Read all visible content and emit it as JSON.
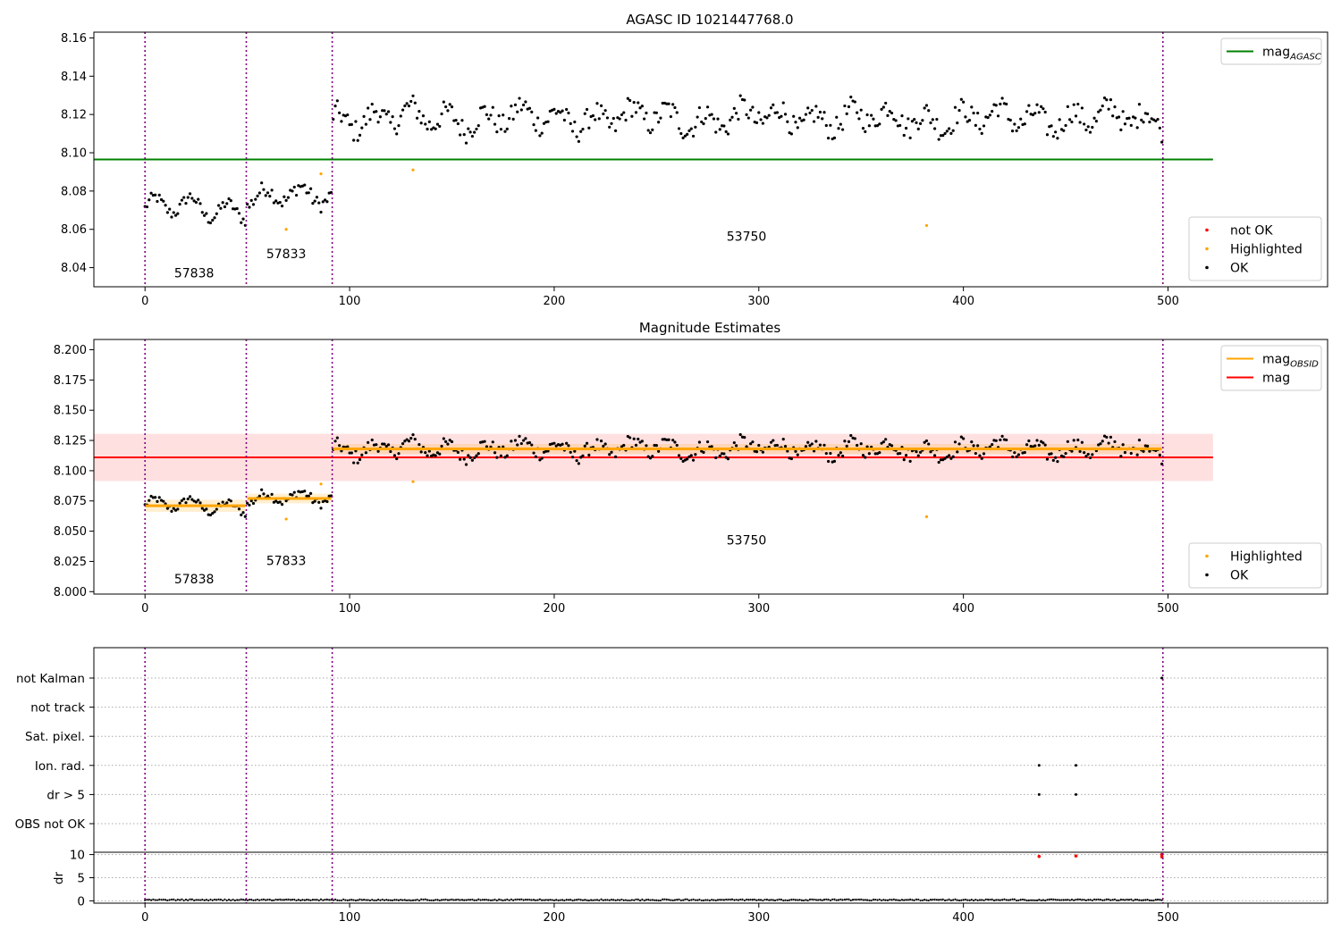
{
  "chart_data": [
    {
      "type": "scatter",
      "title": "AGASC ID 1021447768.0",
      "xlim": [
        -25,
        578
      ],
      "ylim": [
        8.03,
        8.163
      ],
      "xticks": [
        0,
        100,
        200,
        300,
        400,
        500
      ],
      "xtick_labels": [
        "0",
        "100",
        "200",
        "300",
        "400",
        "500"
      ],
      "yticks": [
        8.04,
        8.06,
        8.08,
        8.1,
        8.12,
        8.14,
        8.16
      ],
      "ytick_labels": [
        "8.04",
        "8.06",
        "8.08",
        "8.10",
        "8.12",
        "8.14",
        "8.16"
      ],
      "obs_boundaries": [
        0,
        49.5,
        91.5,
        497.5
      ],
      "obs_labels": [
        {
          "x": 24,
          "y": 8.035,
          "text": "57838"
        },
        {
          "x": 69,
          "y": 8.045,
          "text": "57833"
        },
        {
          "x": 294,
          "y": 8.054,
          "text": "53750"
        }
      ],
      "segments": [
        {
          "x0": 0,
          "x1": 49,
          "center": 8.071,
          "amp": 0.007,
          "noise": 0.003
        },
        {
          "x0": 50,
          "x1": 91,
          "center": 8.077,
          "amp": 0.006,
          "noise": 0.004
        },
        {
          "x0": 92,
          "x1": 497,
          "center": 8.118,
          "amp": 0.007,
          "noise": 0.006
        }
      ],
      "highlighted": [
        {
          "x": 69,
          "y": 8.06
        },
        {
          "x": 86,
          "y": 8.089
        },
        {
          "x": 131,
          "y": 8.091
        },
        {
          "x": 382,
          "y": 8.062
        }
      ],
      "hlines": [
        {
          "name": "mag_AGASC",
          "y": 8.0965,
          "color": "#008000",
          "x0": -25,
          "x1": 522
        }
      ],
      "legends": [
        {
          "position": "top-right",
          "items": [
            {
              "kind": "line",
              "color": "#008000",
              "label": "mag",
              "sub": "AGASC"
            }
          ]
        },
        {
          "position": "bottom-right",
          "items": [
            {
              "kind": "dot",
              "color": "#ff0000",
              "label": "not OK"
            },
            {
              "kind": "dot",
              "color": "#ffa500",
              "label": "Highlighted"
            },
            {
              "kind": "dot",
              "color": "#000000",
              "label": "OK"
            }
          ]
        }
      ]
    },
    {
      "type": "scatter",
      "title": "Magnitude Estimates",
      "xlim": [
        -25,
        578
      ],
      "ylim": [
        7.998,
        8.2085
      ],
      "xticks": [
        0,
        100,
        200,
        300,
        400,
        500
      ],
      "xtick_labels": [
        "0",
        "100",
        "200",
        "300",
        "400",
        "500"
      ],
      "yticks": [
        8.0,
        8.025,
        8.05,
        8.075,
        8.1,
        8.125,
        8.15,
        8.175,
        8.2
      ],
      "ytick_labels": [
        "8.000",
        "8.025",
        "8.050",
        "8.075",
        "8.100",
        "8.125",
        "8.150",
        "8.175",
        "8.200"
      ],
      "obs_boundaries": [
        0,
        49.5,
        91.5,
        497.5
      ],
      "obs_labels": [
        {
          "x": 24,
          "y": 8.007,
          "text": "57838"
        },
        {
          "x": 69,
          "y": 8.022,
          "text": "57833"
        },
        {
          "x": 294,
          "y": 8.039,
          "text": "53750"
        }
      ],
      "segments": [
        {
          "x0": 0,
          "x1": 49,
          "center": 8.071,
          "amp": 0.007,
          "noise": 0.003
        },
        {
          "x0": 50,
          "x1": 91,
          "center": 8.077,
          "amp": 0.006,
          "noise": 0.004
        },
        {
          "x0": 92,
          "x1": 497,
          "center": 8.118,
          "amp": 0.007,
          "noise": 0.006
        }
      ],
      "highlighted": [
        {
          "x": 69,
          "y": 8.06
        },
        {
          "x": 86,
          "y": 8.089
        },
        {
          "x": 131,
          "y": 8.091
        },
        {
          "x": 382,
          "y": 8.062
        }
      ],
      "bands": [
        {
          "x0": -25,
          "x1": 522,
          "y0": 8.0915,
          "y1": 8.1305,
          "color": "#ff0000",
          "opacity": 0.12
        },
        {
          "x0": 0,
          "x1": 49,
          "y0": 8.066,
          "y1": 8.076,
          "color": "#ffa500",
          "opacity": 0.18
        },
        {
          "x0": 50,
          "x1": 91,
          "y0": 8.073,
          "y1": 8.081,
          "color": "#ffa500",
          "opacity": 0.18
        },
        {
          "x0": 92,
          "x1": 497,
          "y0": 8.114,
          "y1": 8.122,
          "color": "#ffa500",
          "opacity": 0.18
        }
      ],
      "step_lines": [
        {
          "name": "mag_OBSID",
          "color": "#ffa500",
          "parts": [
            {
              "x0": 0,
              "x1": 49,
              "y": 8.071
            },
            {
              "x0": 50,
              "x1": 91,
              "y": 8.077
            },
            {
              "x0": 92,
              "x1": 497,
              "y": 8.118
            }
          ]
        }
      ],
      "hlines": [
        {
          "name": "mag",
          "y": 8.111,
          "color": "#ff0000",
          "x0": -25,
          "x1": 522
        }
      ],
      "legends": [
        {
          "position": "top-right",
          "items": [
            {
              "kind": "line",
              "color": "#ffa500",
              "label": "mag",
              "sub": "OBSID"
            },
            {
              "kind": "line",
              "color": "#ff0000",
              "label": "mag"
            }
          ]
        },
        {
          "position": "bottom-right",
          "items": [
            {
              "kind": "dot",
              "color": "#ffa500",
              "label": "Highlighted"
            },
            {
              "kind": "dot",
              "color": "#000000",
              "label": "OK"
            }
          ]
        }
      ]
    },
    {
      "type": "scatter",
      "title": "",
      "xlim": [
        -25,
        578
      ],
      "xticks": [
        0,
        100,
        200,
        300,
        400,
        500
      ],
      "xtick_labels": [
        "0",
        "100",
        "200",
        "300",
        "400",
        "500"
      ],
      "obs_boundaries": [
        0,
        49.5,
        91.5,
        497.5
      ],
      "flag_categories": [
        "not Kalman",
        "not track",
        "Sat. pixel.",
        "Ion. rad.",
        "dr > 5",
        "OBS not OK"
      ],
      "flags": [
        {
          "category": "Ion. rad.",
          "x": [
            437,
            455
          ]
        },
        {
          "category": "dr > 5",
          "x": [
            437,
            455
          ]
        },
        {
          "category": "not Kalman",
          "x": [
            497
          ]
        }
      ],
      "dr": {
        "ylabel": "dr",
        "ylim": [
          -0.5,
          10.5
        ],
        "yticks": [
          0,
          5,
          10
        ],
        "ytick_labels": [
          "0",
          "5",
          "10"
        ],
        "x0": 0,
        "x1": 497,
        "baseline": 0.2,
        "outliers": [
          {
            "x": 437,
            "y": 9.6,
            "color": "#ff0000"
          },
          {
            "x": 455,
            "y": 9.7,
            "color": "#ff0000"
          },
          {
            "x": 497,
            "y": 9.5,
            "color": "#ff0000"
          },
          {
            "x": 497,
            "y": 10.0,
            "color": "#ff0000"
          }
        ]
      }
    }
  ]
}
